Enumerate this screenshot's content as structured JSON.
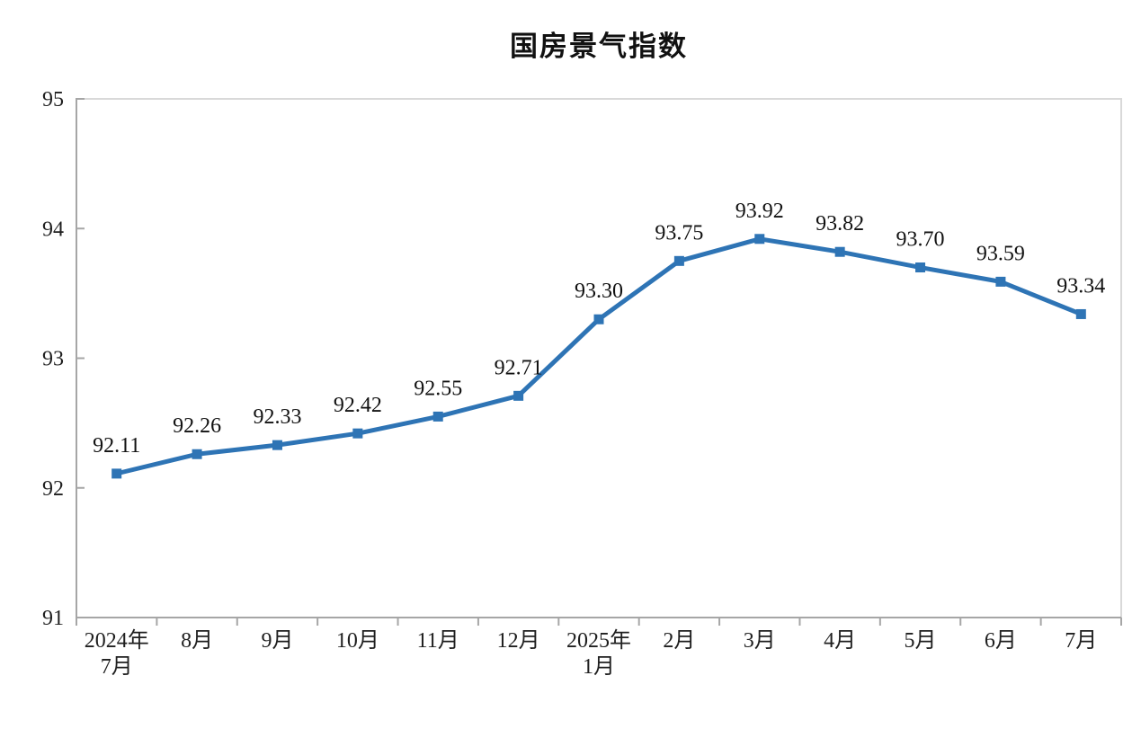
{
  "chart_data": {
    "type": "line",
    "title": "国房景气指数",
    "categories": [
      "2024年\n7月",
      "8月",
      "9月",
      "10月",
      "11月",
      "12月",
      "2025年\n1月",
      "2月",
      "3月",
      "4月",
      "5月",
      "6月",
      "7月"
    ],
    "values": [
      92.11,
      92.26,
      92.33,
      92.42,
      92.55,
      92.71,
      93.3,
      93.75,
      93.92,
      93.82,
      93.7,
      93.59,
      93.34
    ],
    "data_labels": [
      "92.11",
      "92.26",
      "92.33",
      "92.42",
      "92.55",
      "92.71",
      "93.30",
      "93.75",
      "93.92",
      "93.82",
      "93.70",
      "93.59",
      "93.34"
    ],
    "xlabel": "",
    "ylabel": "",
    "ylim": [
      91,
      95
    ],
    "yticks": [
      91,
      92,
      93,
      94,
      95
    ],
    "grid": false,
    "legend": "none",
    "marker": "square"
  },
  "colors": {
    "line": "#2E74B5",
    "marker": "#2E74B5",
    "plot_border": "#D9D9D9",
    "axis": "#A6A6A6",
    "tick_text": "#1f1f1f",
    "data_label_text": "#111111",
    "background": "#FFFFFF"
  }
}
